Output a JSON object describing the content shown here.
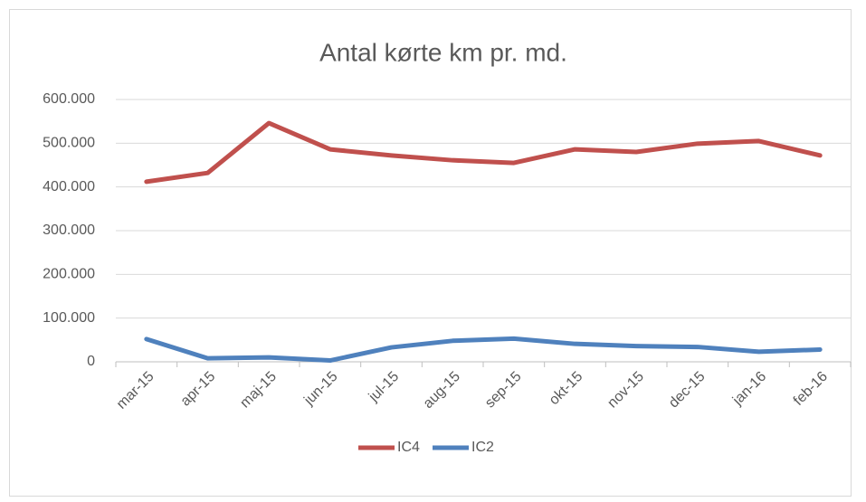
{
  "chart_data": {
    "type": "line",
    "title": "Antal kørte km pr. md.",
    "categories": [
      "mar-15",
      "apr-15",
      "maj-15",
      "jun-15",
      "jul-15",
      "aug-15",
      "sep-15",
      "okt-15",
      "nov-15",
      "dec-15",
      "jan-16",
      "feb-16"
    ],
    "series": [
      {
        "name": "IC4",
        "color": "#c0504d",
        "values": [
          412000,
          432000,
          546000,
          486000,
          472000,
          461000,
          455000,
          486000,
          480000,
          499000,
          505000,
          472000
        ]
      },
      {
        "name": "IC2",
        "color": "#4f81bd",
        "values": [
          52000,
          8000,
          10000,
          3000,
          33000,
          48000,
          53000,
          41000,
          36000,
          34000,
          23000,
          28000
        ]
      }
    ],
    "ylim": [
      0,
      600000
    ],
    "yticks": [
      0,
      {
        "value": 100000,
        "label": "100.000"
      },
      {
        "value": 200000,
        "label": "200.000"
      },
      {
        "value": 300000,
        "label": "300.000"
      },
      {
        "value": 400000,
        "label": "400.000"
      },
      {
        "value": 500000,
        "label": "500.000"
      },
      {
        "value": 600000,
        "label": "600.000"
      }
    ],
    "grid": true,
    "legend": "bottom"
  }
}
